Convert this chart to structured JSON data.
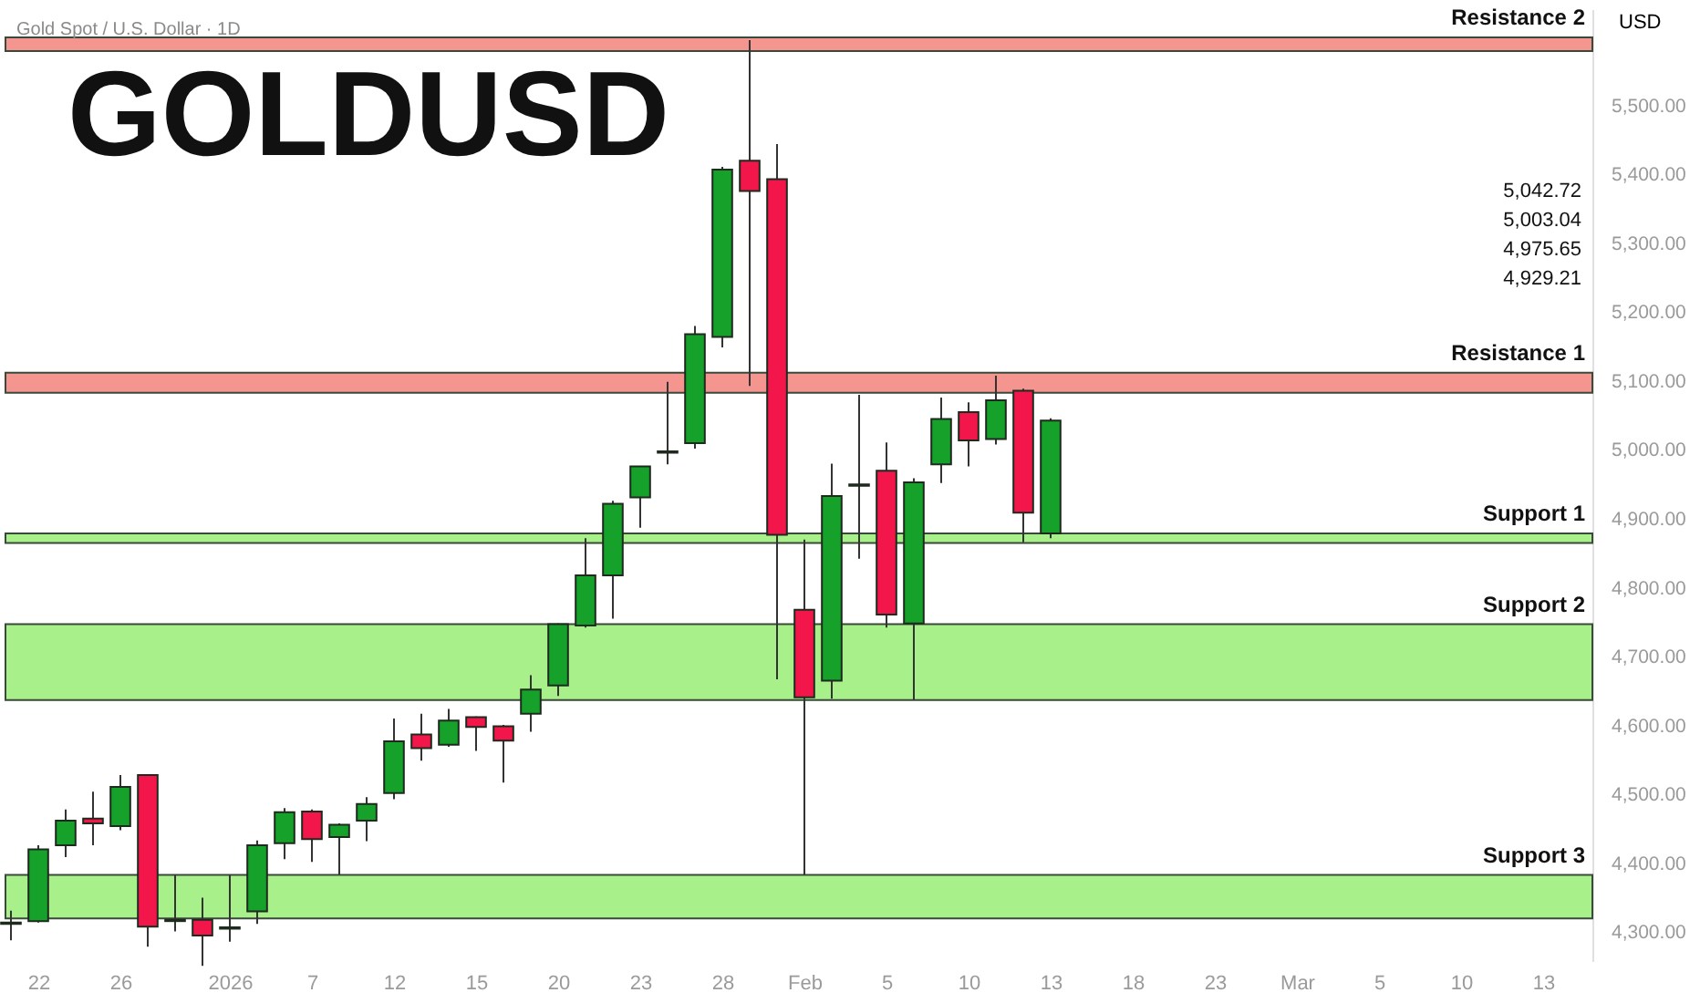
{
  "chart_data": {
    "type": "candlestick",
    "title": "GOLDUSD",
    "subtitle": "Gold Spot / U.S. Dollar · 1D",
    "ylabel": "USD",
    "categories": [
      null,
      "22",
      null,
      null,
      "26",
      null,
      null,
      null,
      "2026",
      null,
      null,
      "7",
      null,
      null,
      "12",
      null,
      null,
      "15",
      null,
      null,
      "20",
      null,
      null,
      "23",
      null,
      null,
      "28",
      null,
      null,
      "Feb",
      null,
      null,
      "5",
      null,
      null,
      "10",
      null,
      null,
      "13",
      null,
      null,
      "18",
      null,
      null,
      "23",
      null,
      null,
      "Mar",
      null,
      null,
      "5",
      null,
      null,
      "10",
      null,
      null,
      "13",
      null
    ],
    "ohlc": [
      [
        4312,
        4331,
        4288,
        4314
      ],
      [
        4316,
        4426,
        4314,
        4420
      ],
      [
        4426,
        4478,
        4409,
        4462
      ],
      [
        4465,
        4504,
        4426,
        4458
      ],
      [
        4454,
        4528,
        4448,
        4511
      ],
      [
        4528,
        4528,
        4279,
        4308
      ],
      [
        4316,
        4383,
        4301,
        4318
      ],
      [
        4318,
        4350,
        4251,
        4295
      ],
      [
        4305,
        4383,
        4286,
        4307
      ],
      [
        4330,
        4433,
        4312,
        4426
      ],
      [
        4429,
        4480,
        4406,
        4474
      ],
      [
        4475,
        4478,
        4402,
        4435
      ],
      [
        4438,
        4458,
        4383,
        4456
      ],
      [
        4462,
        4496,
        4432,
        4486
      ],
      [
        4502,
        4610,
        4493,
        4577
      ],
      [
        4587,
        4617,
        4549,
        4567
      ],
      [
        4572,
        4624,
        4569,
        4607
      ],
      [
        4612,
        4613,
        4563,
        4598
      ],
      [
        4599,
        4601,
        4517,
        4578
      ],
      [
        4617,
        4673,
        4591,
        4652
      ],
      [
        4658,
        4748,
        4643,
        4747
      ],
      [
        4745,
        4872,
        4742,
        4818
      ],
      [
        4818,
        4926,
        4755,
        4922
      ],
      [
        4931,
        4976,
        4887,
        4976
      ],
      [
        4996,
        5099,
        4979,
        4998
      ],
      [
        5010,
        5180,
        5002,
        5168
      ],
      [
        5164,
        5411,
        5149,
        5407
      ],
      [
        5420,
        5595,
        5093,
        5376
      ],
      [
        5393,
        5444,
        4667,
        4877
      ],
      [
        4768,
        4870,
        4383,
        4641
      ],
      [
        4665,
        4980,
        4639,
        4933
      ],
      [
        4948,
        5080,
        4842,
        4950
      ],
      [
        4970,
        5011,
        4742,
        4761
      ],
      [
        4748,
        4959,
        4637,
        4953
      ],
      [
        4979,
        5076,
        4952,
        5045
      ],
      [
        5055,
        5069,
        4976,
        5014
      ],
      [
        5016,
        5108,
        5008,
        5072
      ],
      [
        5086,
        5089,
        4866,
        4909
      ],
      [
        4879,
        5046,
        4872,
        5042.72
      ],
      null,
      null,
      null,
      null,
      null,
      null,
      null,
      null,
      null,
      null,
      null,
      null,
      null,
      null,
      null,
      null,
      null,
      null,
      null
    ],
    "colors": [
      "#1a1a1a",
      "#15a12a",
      "#15a12a",
      "#f2164a",
      "#15a12a",
      "#f2164a",
      "#1a1a1a",
      "#f2164a",
      "#1a1a1a",
      "#15a12a",
      "#15a12a",
      "#f2164a",
      "#15a12a",
      "#15a12a",
      "#15a12a",
      "#f2164a",
      "#15a12a",
      "#f2164a",
      "#f2164a",
      "#15a12a",
      "#15a12a",
      "#15a12a",
      "#15a12a",
      "#15a12a",
      "#1a1a1a",
      "#15a12a",
      "#15a12a",
      "#f2164a",
      "#f2164a",
      "#f2164a",
      "#15a12a",
      "#1a1a1a",
      "#f2164a",
      "#15a12a",
      "#15a12a",
      "#f2164a",
      "#15a12a",
      "#f2164a",
      "#15a12a",
      null,
      null,
      null,
      null,
      null,
      null,
      null,
      null,
      null,
      null,
      null,
      null,
      null,
      null,
      null,
      null,
      null,
      null,
      null
    ],
    "ylim": [
      4258,
      5640
    ],
    "yticks": [
      {
        "value": 4300,
        "label": "4,300.00"
      },
      {
        "value": 4400,
        "label": "4,400.00"
      },
      {
        "value": 4500,
        "label": "4,500.00"
      },
      {
        "value": 4600,
        "label": "4,600.00"
      },
      {
        "value": 4700,
        "label": "4,700.00"
      },
      {
        "value": 4800,
        "label": "4,800.00"
      },
      {
        "value": 4900,
        "label": "4,900.00"
      },
      {
        "value": 5000,
        "label": "5,000.00"
      },
      {
        "value": 5100,
        "label": "5,100.00"
      },
      {
        "value": 5200,
        "label": "5,200.00"
      },
      {
        "value": 5300,
        "label": "5,300.00"
      },
      {
        "value": 5400,
        "label": "5,400.00"
      },
      {
        "value": 5500,
        "label": "5,500.00"
      }
    ],
    "bands": [
      {
        "axis": "y",
        "from": 5579,
        "to": 5599,
        "label": "Resistance 2",
        "color": "#f5958f"
      },
      {
        "axis": "y",
        "from": 5083,
        "to": 5112,
        "label": "Resistance 1",
        "color": "#f5958f"
      },
      {
        "axis": "y",
        "from": 4865,
        "to": 4879,
        "label": "Support 1",
        "color": "#a8f08a"
      },
      {
        "axis": "y",
        "from": 4637,
        "to": 4747,
        "label": "Support 2",
        "color": "#a8f08a"
      },
      {
        "axis": "y",
        "from": 4320,
        "to": 4383,
        "label": "Support 3",
        "color": "#a8f08a"
      }
    ],
    "annotations": [
      "5,042.72",
      "5,003.04",
      "4,975.65",
      "4,929.21"
    ],
    "grid": false
  }
}
